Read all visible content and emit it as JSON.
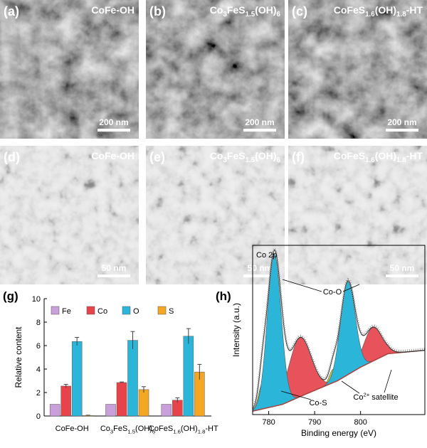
{
  "panels": [
    {
      "label": "(a)",
      "title": [
        "CoFe-OH"
      ],
      "scale": "200 nm"
    },
    {
      "label": "(b)",
      "title": [
        "Co",
        "3",
        "FeS",
        "1.5",
        "(OH)",
        "6"
      ],
      "scale": "200 nm"
    },
    {
      "label": "(c)",
      "title": [
        "CoFeS",
        "1.6",
        "(OH)",
        "1.8",
        "-HT"
      ],
      "scale": "200 nm"
    },
    {
      "label": "(d)",
      "title": [
        "CoFe-OH"
      ],
      "scale": "50 nm"
    },
    {
      "label": "(e)",
      "title": [
        "Co",
        "3",
        "FeS",
        "1.5",
        "(OH)",
        "6"
      ],
      "scale": "50 nm"
    },
    {
      "label": "(f)",
      "title": [
        "CoFeS",
        "1.6",
        "(OH)",
        "1.8",
        "-HT"
      ],
      "scale": "50 nm"
    }
  ],
  "chart_data": [
    {
      "type": "bar",
      "label": "(g)",
      "y_label": "Relative content",
      "categories": [
        [
          "CoFe-OH"
        ],
        [
          "Co",
          "3",
          "FeS",
          "1.5",
          "(OH)",
          "6"
        ],
        [
          "CoFeS",
          "1.6",
          "(OH)",
          "1.8",
          "-HT"
        ]
      ],
      "series": [
        {
          "name": "Fe",
          "color": "#c9a0dc",
          "values": [
            1.0,
            1.0,
            1.0
          ]
        },
        {
          "name": "Co",
          "color": "#e8424a",
          "values": [
            2.55,
            2.85,
            1.35
          ],
          "errors": [
            0.15,
            0.05,
            0.2
          ]
        },
        {
          "name": "O",
          "color": "#2bb5d8",
          "values": [
            6.35,
            6.45,
            6.8
          ],
          "errors": [
            0.35,
            0.75,
            0.65
          ]
        },
        {
          "name": "S",
          "color": "#f5a623",
          "values": [
            0.05,
            2.25,
            3.75
          ],
          "errors": [
            0.02,
            0.25,
            0.65
          ]
        }
      ],
      "ylim": [
        0,
        10
      ],
      "yticks": [
        0,
        2,
        4,
        6,
        8,
        10
      ],
      "legend": "top"
    },
    {
      "type": "xps",
      "label": "(h)",
      "x_label": "Binding energy (eV)",
      "y_label": "Intensity (a.u.)",
      "xlim": [
        776.5,
        814
      ],
      "xticks": [
        780,
        790,
        800
      ],
      "ylim": [
        0,
        1
      ],
      "background": {
        "color": "#a8423e",
        "x": [
          776.5,
          783,
          788,
          795,
          800,
          806,
          814
        ],
        "values": [
          0.02,
          0.06,
          0.12,
          0.2,
          0.28,
          0.36,
          0.38
        ]
      },
      "components": [
        {
          "color": "#c8c83a",
          "center": 778.6,
          "height": 0.15,
          "width": 0.8
        },
        {
          "color": "#c8c83a",
          "center": 794.0,
          "height": 0.08,
          "width": 0.8
        },
        {
          "color": "#e8525a",
          "center": 786.8,
          "height": 0.35,
          "width": 2.4
        },
        {
          "color": "#e8525a",
          "center": 802.6,
          "height": 0.2,
          "width": 2.0
        },
        {
          "color": "#2bb5d8",
          "center": 781.2,
          "height": 0.9,
          "width": 1.5
        },
        {
          "color": "#2bb5d8",
          "center": 797.2,
          "height": 0.55,
          "width": 1.6
        }
      ],
      "annotations": [
        [
          "Co 2p"
        ],
        [
          "Co-O"
        ],
        [
          "Co-S"
        ],
        [
          "Co",
          "2+",
          " satellite"
        ]
      ]
    }
  ]
}
